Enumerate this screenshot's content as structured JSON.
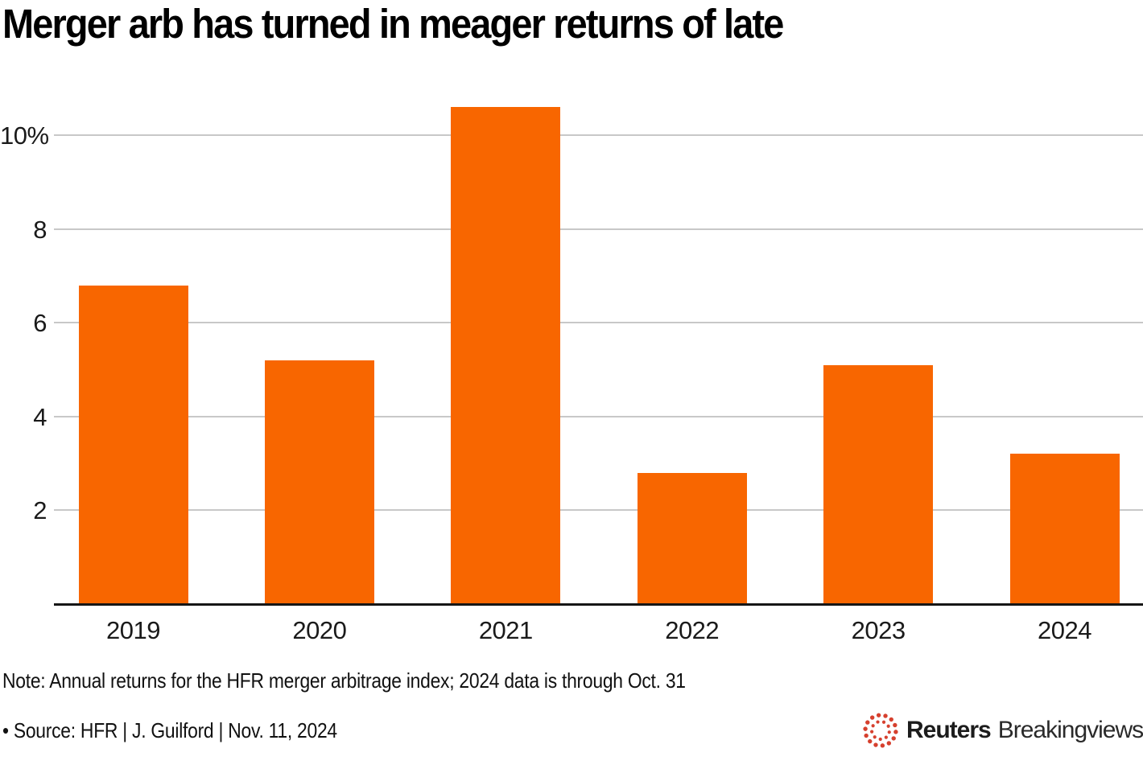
{
  "title": "Merger arb has turned in meager returns of late",
  "note": "Note: Annual returns for the HFR merger arbitrage index; 2024 data is through Oct. 31",
  "source": "• Source: HFR | J. Guilford | Nov. 11, 2024",
  "logo": {
    "orb_icon": "reuters-dotted-orb",
    "orb_color": "#d6402e",
    "brand": "Reuters",
    "suffix": "Breakingviews",
    "text_color": "#1c1c1c"
  },
  "colors": {
    "bar": "#f86600",
    "gridline": "#c8c8c8",
    "axis": "#161616",
    "text": "#1a1a1a",
    "title_text": "#000000",
    "background": "#ffffff"
  },
  "chart_data": {
    "type": "bar",
    "title": "Merger arb has turned in meager returns of late",
    "categories": [
      "2019",
      "2020",
      "2021",
      "2022",
      "2023",
      "2024"
    ],
    "values": [
      6.8,
      5.2,
      10.6,
      2.8,
      5.1,
      3.2
    ],
    "unit": "%",
    "xlabel": "",
    "ylabel": "",
    "ylim": [
      0,
      11
    ],
    "yticks": [
      2,
      4,
      6,
      8,
      10
    ],
    "ytick_labels": [
      "2",
      "4",
      "6",
      "8",
      "10%"
    ],
    "grid": "horizontal",
    "legend": "none",
    "bar_color": "#f86600",
    "note": "Note: Annual returns for the HFR merger arbitrage index; 2024 data is through Oct. 31",
    "source": "Source: HFR | J. Guilford | Nov. 11, 2024"
  }
}
